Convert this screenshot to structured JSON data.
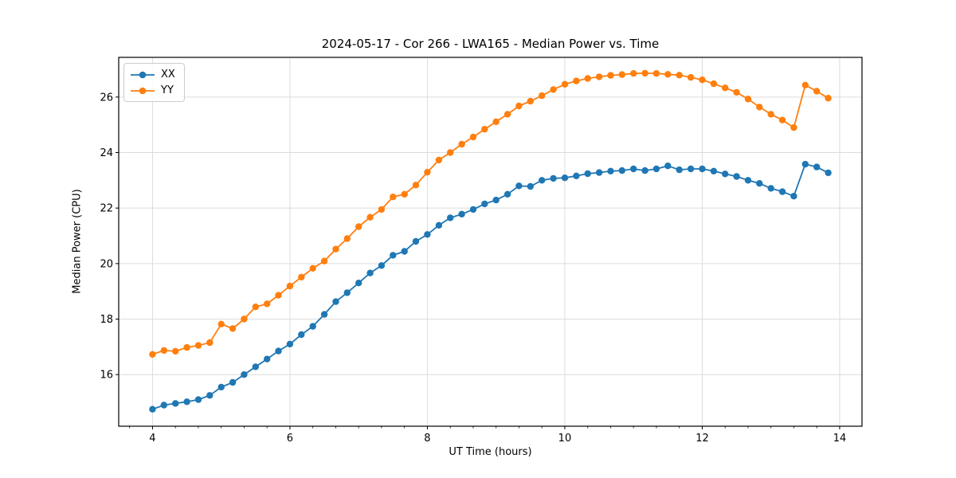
{
  "chart_data": {
    "type": "line",
    "title": "2024-05-17 - Cor 266 - LWA165 - Median Power vs. Time",
    "xlabel": "UT Time (hours)",
    "ylabel": "Median Power (CPU)",
    "xlim": [
      3.508,
      14.325
    ],
    "ylim": [
      14.14,
      27.43
    ],
    "grid": true,
    "legend_position": "upper left",
    "xticks": {
      "values": [
        4,
        6,
        8,
        10,
        12,
        14
      ],
      "labels": [
        "4",
        "6",
        "8",
        "10",
        "12",
        "14"
      ]
    },
    "yticks": {
      "values": [
        16,
        18,
        20,
        22,
        24,
        26
      ],
      "labels": [
        "16",
        "18",
        "20",
        "22",
        "24",
        "26"
      ]
    },
    "minor_xtick_step_hours": 0.3333,
    "x": [
      4.0,
      4.167,
      4.333,
      4.5,
      4.667,
      4.833,
      5.0,
      5.167,
      5.333,
      5.5,
      5.667,
      5.833,
      6.0,
      6.167,
      6.333,
      6.5,
      6.667,
      6.833,
      7.0,
      7.167,
      7.333,
      7.5,
      7.667,
      7.833,
      8.0,
      8.167,
      8.333,
      8.5,
      8.667,
      8.833,
      9.0,
      9.167,
      9.333,
      9.5,
      9.667,
      9.833,
      10.0,
      10.167,
      10.333,
      10.5,
      10.667,
      10.833,
      11.0,
      11.167,
      11.333,
      11.5,
      11.667,
      11.833,
      12.0,
      12.167,
      12.333,
      12.5,
      12.667,
      12.833,
      13.0,
      13.167,
      13.333,
      13.5,
      13.667,
      13.833
    ],
    "series": [
      {
        "name": "XX",
        "color": "#1f77b4",
        "values": [
          14.75,
          14.9,
          14.96,
          15.02,
          15.1,
          15.25,
          15.55,
          15.72,
          16.0,
          16.28,
          16.56,
          16.85,
          17.1,
          17.44,
          17.74,
          18.17,
          18.63,
          18.95,
          19.3,
          19.66,
          19.93,
          20.3,
          20.44,
          20.8,
          21.05,
          21.38,
          21.65,
          21.78,
          21.95,
          22.15,
          22.29,
          22.5,
          22.8,
          22.78,
          23.0,
          23.07,
          23.09,
          23.16,
          23.24,
          23.28,
          23.33,
          23.35,
          23.41,
          23.35,
          23.41,
          23.52,
          23.38,
          23.41,
          23.41,
          23.33,
          23.23,
          23.14,
          23.0,
          22.89,
          22.71,
          22.59,
          22.43,
          23.58,
          23.48,
          23.27
        ]
      },
      {
        "name": "YY",
        "color": "#ff7f0e",
        "values": [
          16.73,
          16.87,
          16.84,
          16.98,
          17.05,
          17.15,
          17.82,
          17.66,
          18.0,
          18.44,
          18.55,
          18.86,
          19.19,
          19.51,
          19.83,
          20.09,
          20.52,
          20.9,
          21.33,
          21.67,
          21.95,
          22.4,
          22.5,
          22.83,
          23.29,
          23.73,
          24.0,
          24.3,
          24.56,
          24.84,
          25.11,
          25.38,
          25.68,
          25.85,
          26.05,
          26.27,
          26.46,
          26.58,
          26.67,
          26.73,
          26.78,
          26.81,
          26.85,
          26.86,
          26.85,
          26.82,
          26.79,
          26.71,
          26.62,
          26.48,
          26.33,
          26.17,
          25.93,
          25.64,
          25.38,
          25.17,
          24.9,
          26.43,
          26.21,
          25.96
        ]
      }
    ],
    "colors": {
      "grid": "#dcdcdc",
      "frame": "#000000",
      "background": "#ffffff"
    }
  }
}
